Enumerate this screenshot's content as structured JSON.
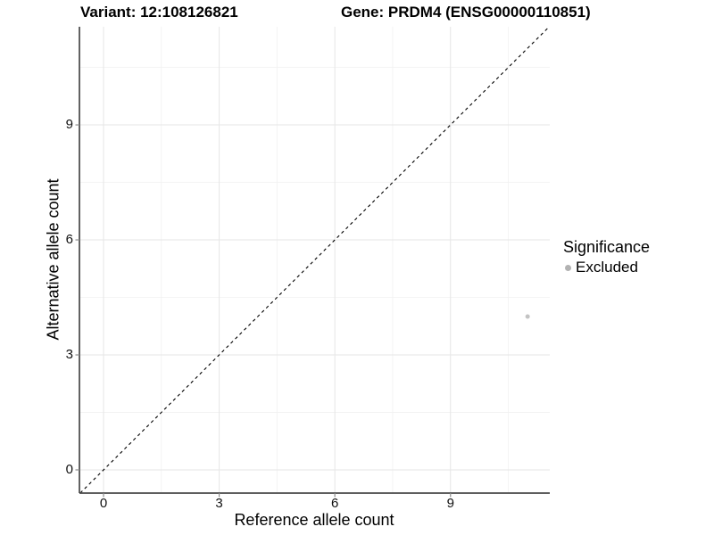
{
  "chart_data": {
    "type": "scatter",
    "title_variant": "Variant: 12:108126821",
    "title_gene": "Gene: PRDM4 (ENSG00000110851)",
    "xlabel": "Reference allele count",
    "ylabel": "Alternative allele count",
    "x_ticks": [
      0,
      3,
      6,
      9
    ],
    "y_ticks": [
      0,
      3,
      6,
      9
    ],
    "x_minor": [
      1.5,
      4.5,
      7.5,
      10.5
    ],
    "y_minor": [
      1.5,
      4.5,
      7.5,
      10.5
    ],
    "xlim": [
      -0.625,
      11.575
    ],
    "ylim": [
      -0.605,
      11.56
    ],
    "grid": "major-and-minor",
    "points": [
      {
        "x": 11,
        "y": 4,
        "significance": "Excluded"
      }
    ],
    "identity_line": {
      "style": "dashed",
      "slope": 1,
      "intercept": 0
    },
    "legend": {
      "title": "Significance",
      "position": "right",
      "items": [
        {
          "label": "Excluded",
          "color": "#b2b2b2"
        }
      ]
    },
    "colors": {
      "background": "#ffffff",
      "point": "#c3c3c3",
      "grid_major": "#e6e6e6",
      "grid_minor": "#f2f2f2",
      "axis_line": "#474747",
      "tick_mark": "#8c8c8c",
      "dashed_line": "#000000",
      "text": "#000000"
    }
  }
}
